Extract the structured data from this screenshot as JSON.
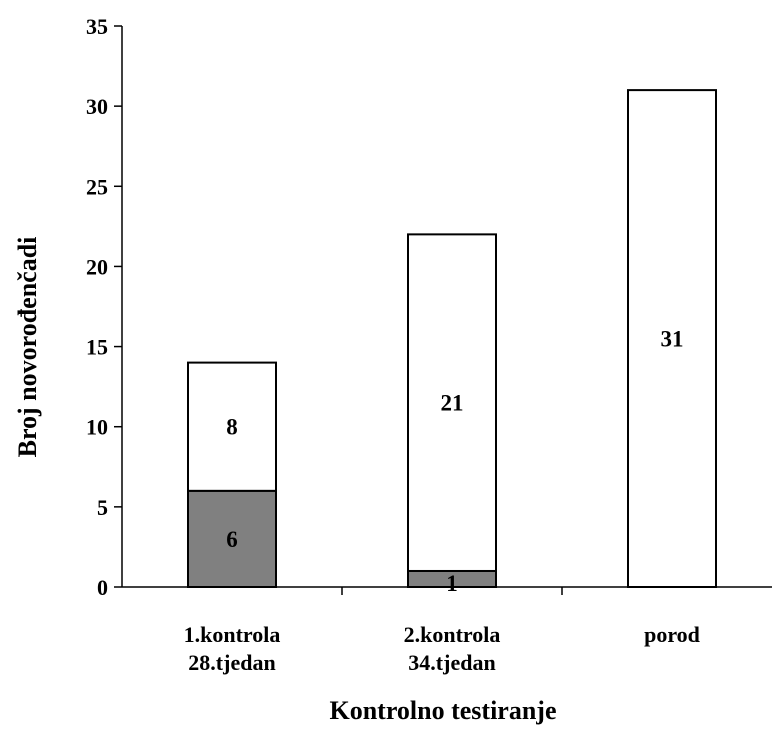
{
  "chart_data": {
    "type": "bar",
    "stacked": true,
    "categories": [
      [
        "1.kontrola",
        "28.tjedan"
      ],
      [
        "2.kontrola",
        "34.tjedan"
      ],
      [
        "porod"
      ]
    ],
    "series": [
      {
        "values": [
          6,
          1,
          0
        ],
        "color": "#808080",
        "data_labels": [
          "6",
          "1",
          ""
        ]
      },
      {
        "values": [
          8,
          21,
          31
        ],
        "color": "#ffffff",
        "data_labels": [
          "8",
          "21",
          "31"
        ]
      }
    ],
    "xlabel": "Kontrolno testiranje",
    "ylabel": "Broj novorođenčadi",
    "ylim": [
      0,
      35
    ],
    "yticks": [
      0,
      5,
      10,
      15,
      20,
      25,
      30,
      35
    ],
    "grid": false,
    "legend": "none"
  }
}
